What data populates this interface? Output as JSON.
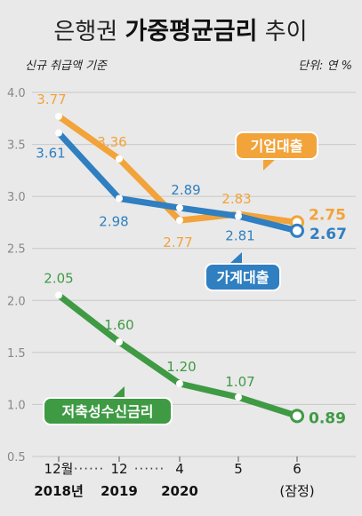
{
  "title": {
    "regular_1": "은행권",
    "bold": "가중평균금리",
    "regular_2": "추이"
  },
  "subtitle_left": "신규 취급액 기준",
  "subtitle_right": "단위: 연 %",
  "chart_data": {
    "type": "line",
    "categories": [
      "12월",
      "12",
      "4",
      "5",
      "6"
    ],
    "year_labels": [
      "2018년",
      "2019",
      "2020",
      "",
      "(잠정)"
    ],
    "ylim": [
      0.5,
      4.0
    ],
    "yticks": [
      "4.0",
      "3.5",
      "3.0",
      "2.5",
      "2.0",
      "1.5",
      "1.0",
      "0.5"
    ],
    "ytick_values": [
      4.0,
      3.5,
      3.0,
      2.5,
      2.0,
      1.5,
      1.0,
      0.5
    ],
    "grid": true,
    "axis_break_marks": "······",
    "series": [
      {
        "name": "기업대출",
        "color": "#f2a33a",
        "values": [
          3.77,
          3.36,
          2.77,
          2.83,
          2.75
        ],
        "labels": [
          "3.77",
          "3.36",
          "2.77",
          "2.83",
          "2.75"
        ]
      },
      {
        "name": "가계대출",
        "color": "#2f7fc1",
        "values": [
          3.61,
          2.98,
          2.89,
          2.81,
          2.67
        ],
        "labels": [
          "3.61",
          "2.98",
          "2.89",
          "2.81",
          "2.67"
        ]
      },
      {
        "name": "저축성수신금리",
        "color": "#3f9a44",
        "values": [
          2.05,
          1.6,
          1.2,
          1.07,
          0.89
        ],
        "labels": [
          "2.05",
          "1.60",
          "1.20",
          "1.07",
          "0.89"
        ]
      }
    ]
  }
}
